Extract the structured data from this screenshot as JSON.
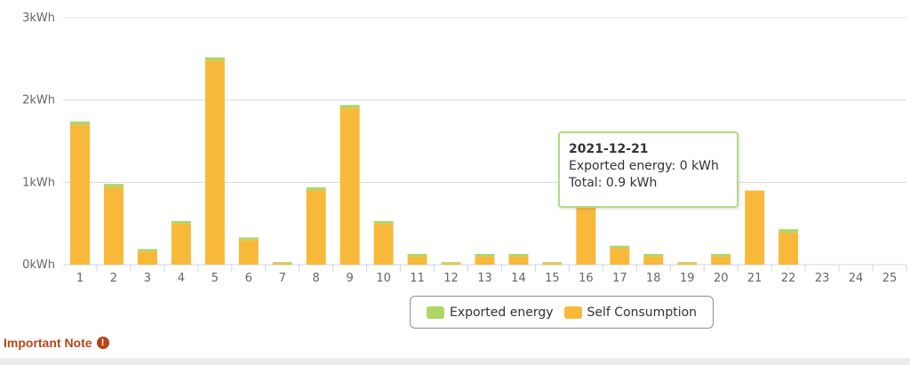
{
  "chart_data": {
    "type": "bar",
    "stacked": true,
    "categories": [
      "1",
      "2",
      "3",
      "4",
      "5",
      "6",
      "7",
      "8",
      "9",
      "10",
      "11",
      "12",
      "13",
      "14",
      "15",
      "16",
      "17",
      "18",
      "19",
      "20",
      "21",
      "22",
      "23",
      "24",
      "25"
    ],
    "series": [
      {
        "name": "Exported energy",
        "color": "#afd566",
        "values": [
          0.04,
          0.04,
          0.03,
          0.03,
          0.04,
          0.03,
          0.01,
          0.04,
          0.04,
          0.03,
          0.03,
          0.01,
          0.03,
          0.03,
          0.01,
          0,
          0.03,
          0.03,
          0.01,
          0.03,
          0,
          0.04,
          0,
          0,
          0
        ]
      },
      {
        "name": "Self Consumption",
        "color": "#f8b93b",
        "values": [
          1.7,
          0.94,
          0.16,
          0.5,
          2.48,
          0.3,
          0.02,
          0.9,
          1.9,
          0.5,
          0.1,
          0.02,
          0.1,
          0.1,
          0.02,
          0.75,
          0.2,
          0.1,
          0.02,
          0.1,
          0.9,
          0.39,
          0,
          0,
          0
        ]
      }
    ],
    "yticks": [
      "0kWh",
      "1kWh",
      "2kWh",
      "3kWh"
    ],
    "ylim": [
      0,
      3
    ],
    "grid": true,
    "legend_position": "bottom-right"
  },
  "tooltip": {
    "title": "2021-12-21",
    "line1": "Exported energy: 0 kWh",
    "line2": "Total: 0.9 kWh"
  },
  "legend": {
    "exported": "Exported energy",
    "self": "Self Consumption"
  },
  "note": {
    "label": "Important Note",
    "icon": "exclamation-circle-icon"
  }
}
